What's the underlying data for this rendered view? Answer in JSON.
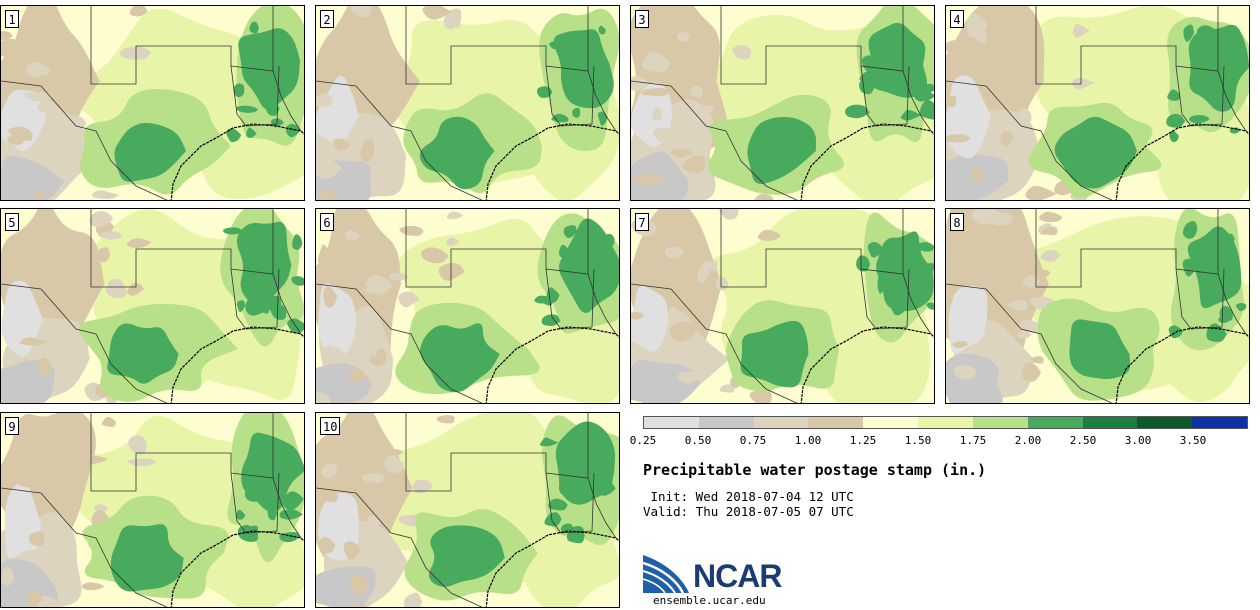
{
  "panels": [
    {
      "label": "1",
      "seed": 11,
      "east_shift": 0
    },
    {
      "label": "2",
      "seed": 23,
      "east_shift": 2
    },
    {
      "label": "3",
      "seed": 37,
      "east_shift": 4
    },
    {
      "label": "4",
      "seed": 41,
      "east_shift": 6
    },
    {
      "label": "5",
      "seed": 53,
      "east_shift": 1
    },
    {
      "label": "6",
      "seed": 67,
      "east_shift": 3
    },
    {
      "label": "7",
      "seed": 79,
      "east_shift": 5
    },
    {
      "label": "8",
      "seed": 83,
      "east_shift": 7
    },
    {
      "label": "9",
      "seed": 97,
      "east_shift": 2
    },
    {
      "label": "10",
      "seed": 101,
      "east_shift": 4
    }
  ],
  "legend": {
    "colors": [
      "#e0e0e0",
      "#c8c8c8",
      "#ddd4c0",
      "#d8c8a8",
      "#fdfdd0",
      "#e8f5a8",
      "#b8e088",
      "#48aa5c",
      "#1a8040",
      "#0c5a2c",
      "#1030a8"
    ],
    "ticks": [
      "0.25",
      "0.50",
      "0.75",
      "1.00",
      "1.25",
      "1.50",
      "1.75",
      "2.00",
      "2.50",
      "3.00",
      "3.50"
    ]
  },
  "title": "Precipitable water postage stamp (in.)",
  "init_line": " Init: Wed 2018-07-04 12 UTC",
  "valid_line": "Valid: Thu 2018-07-05 07 UTC",
  "logo": {
    "name": "NCAR",
    "url": "ensemble.ucar.edu"
  }
}
